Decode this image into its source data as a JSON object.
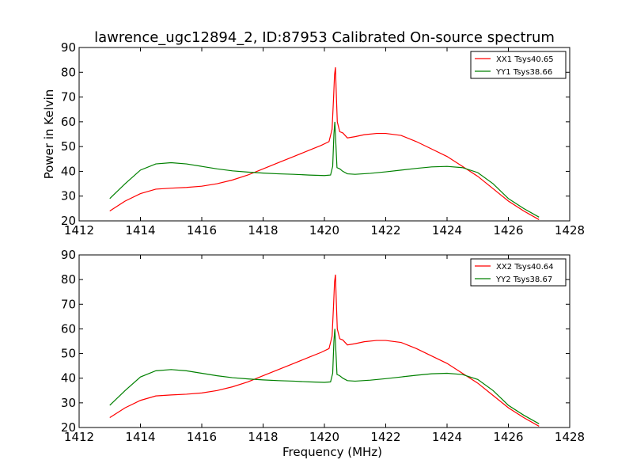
{
  "figure": {
    "title": "lawrence_ugc12894_2, ID:87953 Calibrated On-source spectrum"
  },
  "chart_data": [
    {
      "type": "line",
      "ylabel": "Power in Kelvin",
      "xlabel": "",
      "xlim": [
        1412,
        1428
      ],
      "ylim": [
        20,
        90
      ],
      "xticks": [
        1412,
        1414,
        1416,
        1418,
        1420,
        1422,
        1424,
        1426,
        1428
      ],
      "yticks": [
        20,
        30,
        40,
        50,
        60,
        70,
        80,
        90
      ],
      "legend_position": "top-right",
      "grid": false,
      "series": [
        {
          "name": "XX1 Tsys40.65",
          "color": "#ff0000",
          "x": [
            1413.0,
            1413.5,
            1414.0,
            1414.5,
            1415.0,
            1415.5,
            1416.0,
            1416.5,
            1417.0,
            1417.5,
            1418.0,
            1418.5,
            1419.0,
            1419.5,
            1419.9,
            1420.15,
            1420.25,
            1420.3,
            1420.33,
            1420.36,
            1420.38,
            1420.42,
            1420.5,
            1420.6,
            1420.75,
            1421.0,
            1421.3,
            1421.7,
            1422.0,
            1422.5,
            1423.0,
            1423.5,
            1424.0,
            1424.5,
            1425.0,
            1425.5,
            1426.0,
            1426.5,
            1427.0
          ],
          "y": [
            24,
            28,
            31,
            32.8,
            33.2,
            33.5,
            34,
            35,
            36.5,
            38.5,
            41,
            43.5,
            46,
            48.5,
            50.5,
            52,
            57,
            70,
            79,
            82,
            74,
            60,
            56,
            55.5,
            53.5,
            54,
            54.8,
            55.3,
            55.3,
            54.5,
            52,
            49,
            46,
            42,
            38,
            33,
            28,
            24,
            20.5
          ]
        },
        {
          "name": "YY1 Tsys38.66",
          "color": "#008000",
          "x": [
            1413.0,
            1413.5,
            1414.0,
            1414.5,
            1415.0,
            1415.5,
            1416.0,
            1416.5,
            1417.0,
            1417.5,
            1418.0,
            1418.5,
            1419.0,
            1419.5,
            1420.0,
            1420.2,
            1420.27,
            1420.31,
            1420.34,
            1420.37,
            1420.41,
            1420.5,
            1420.6,
            1420.75,
            1421.0,
            1421.5,
            1422.0,
            1422.5,
            1423.0,
            1423.5,
            1424.0,
            1424.5,
            1425.0,
            1425.5,
            1426.0,
            1426.5,
            1427.0
          ],
          "y": [
            29,
            35,
            40.5,
            43,
            43.5,
            43,
            42,
            41,
            40.2,
            39.7,
            39.3,
            39,
            38.8,
            38.5,
            38.3,
            38.5,
            42,
            55,
            60,
            52,
            41.5,
            41,
            40,
            39,
            38.8,
            39.2,
            39.8,
            40.5,
            41.2,
            41.8,
            42,
            41.5,
            39.5,
            35,
            29,
            25,
            21.5
          ]
        }
      ]
    },
    {
      "type": "line",
      "ylabel": "",
      "xlabel": "Frequency (MHz)",
      "xlim": [
        1412,
        1428
      ],
      "ylim": [
        20,
        90
      ],
      "xticks": [
        1412,
        1414,
        1416,
        1418,
        1420,
        1422,
        1424,
        1426,
        1428
      ],
      "yticks": [
        20,
        30,
        40,
        50,
        60,
        70,
        80,
        90
      ],
      "legend_position": "top-right",
      "grid": false,
      "series": [
        {
          "name": "XX2 Tsys40.64",
          "color": "#ff0000",
          "x": [
            1413.0,
            1413.5,
            1414.0,
            1414.5,
            1415.0,
            1415.5,
            1416.0,
            1416.5,
            1417.0,
            1417.5,
            1418.0,
            1418.5,
            1419.0,
            1419.5,
            1419.9,
            1420.15,
            1420.25,
            1420.3,
            1420.33,
            1420.36,
            1420.38,
            1420.42,
            1420.5,
            1420.6,
            1420.75,
            1421.0,
            1421.3,
            1421.7,
            1422.0,
            1422.5,
            1423.0,
            1423.5,
            1424.0,
            1424.5,
            1425.0,
            1425.5,
            1426.0,
            1426.5,
            1427.0
          ],
          "y": [
            24,
            28,
            31,
            32.8,
            33.2,
            33.5,
            34,
            35,
            36.5,
            38.5,
            41,
            43.5,
            46,
            48.5,
            50.5,
            52,
            57,
            70,
            79,
            82,
            74,
            60,
            56,
            55.5,
            53.5,
            54,
            54.8,
            55.3,
            55.3,
            54.5,
            52,
            49,
            46,
            42,
            38,
            33,
            28,
            24,
            20.5
          ]
        },
        {
          "name": "YY2 Tsys38.67",
          "color": "#008000",
          "x": [
            1413.0,
            1413.5,
            1414.0,
            1414.5,
            1415.0,
            1415.5,
            1416.0,
            1416.5,
            1417.0,
            1417.5,
            1418.0,
            1418.5,
            1419.0,
            1419.5,
            1420.0,
            1420.2,
            1420.27,
            1420.31,
            1420.34,
            1420.37,
            1420.41,
            1420.5,
            1420.6,
            1420.75,
            1421.0,
            1421.5,
            1422.0,
            1422.5,
            1423.0,
            1423.5,
            1424.0,
            1424.5,
            1425.0,
            1425.5,
            1426.0,
            1426.5,
            1427.0
          ],
          "y": [
            29,
            35,
            40.5,
            43,
            43.5,
            43,
            42,
            41,
            40.2,
            39.7,
            39.3,
            39,
            38.8,
            38.5,
            38.3,
            38.5,
            42,
            55,
            60,
            52,
            41.5,
            41,
            40,
            39,
            38.8,
            39.2,
            39.8,
            40.5,
            41.2,
            41.8,
            42,
            41.5,
            39.5,
            35,
            29,
            25,
            21.5
          ]
        }
      ]
    }
  ]
}
